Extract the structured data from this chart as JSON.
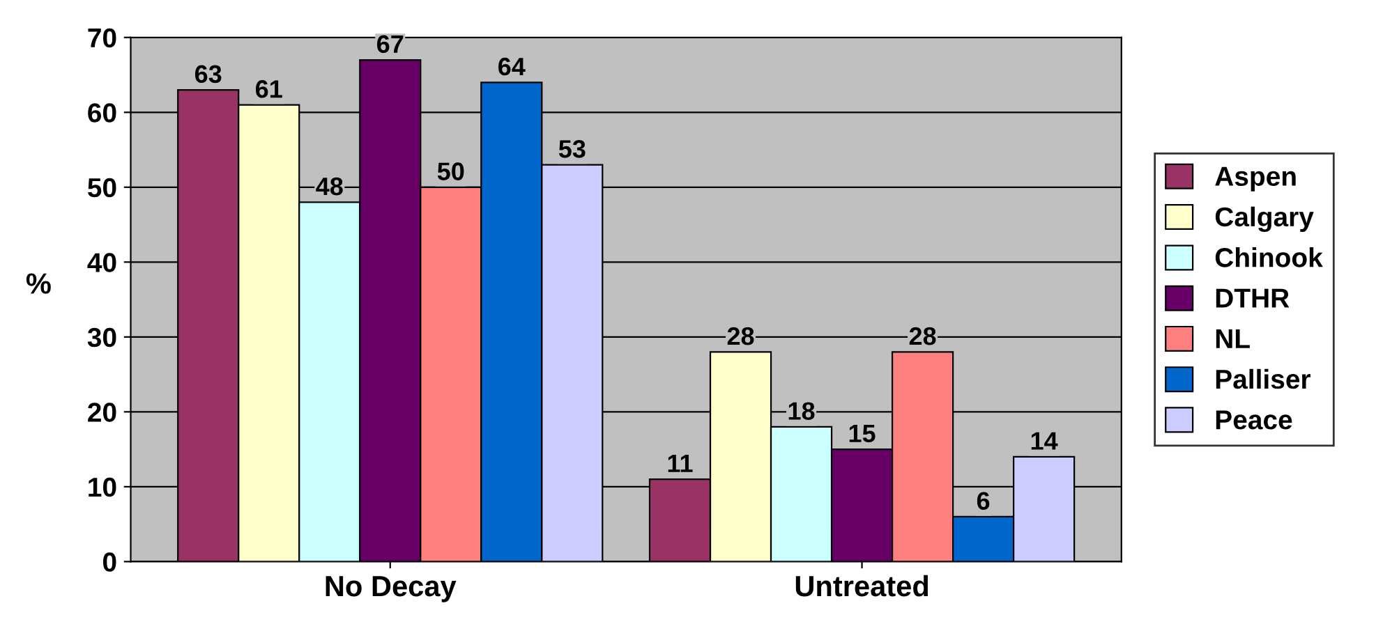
{
  "chart_data": {
    "type": "bar",
    "ylabel": "%",
    "categories": [
      "No Decay",
      "Untreated"
    ],
    "series": [
      {
        "name": "Aspen",
        "color": "#993366",
        "values": [
          63,
          11
        ]
      },
      {
        "name": "Calgary",
        "color": "#ffffcc",
        "values": [
          61,
          28
        ]
      },
      {
        "name": "Chinook",
        "color": "#ccffff",
        "values": [
          48,
          18
        ]
      },
      {
        "name": "DTHR",
        "color": "#660066",
        "values": [
          67,
          15
        ]
      },
      {
        "name": "NL",
        "color": "#ff8080",
        "values": [
          50,
          28
        ]
      },
      {
        "name": "Palliser",
        "color": "#0066cc",
        "values": [
          64,
          6
        ]
      },
      {
        "name": "Peace",
        "color": "#ccccff",
        "values": [
          53,
          14
        ]
      }
    ],
    "ylim": [
      0,
      70
    ],
    "yticks": [
      0,
      10,
      20,
      30,
      40,
      50,
      60,
      70
    ],
    "grid": "y",
    "legend": "right",
    "data_labels": true
  }
}
